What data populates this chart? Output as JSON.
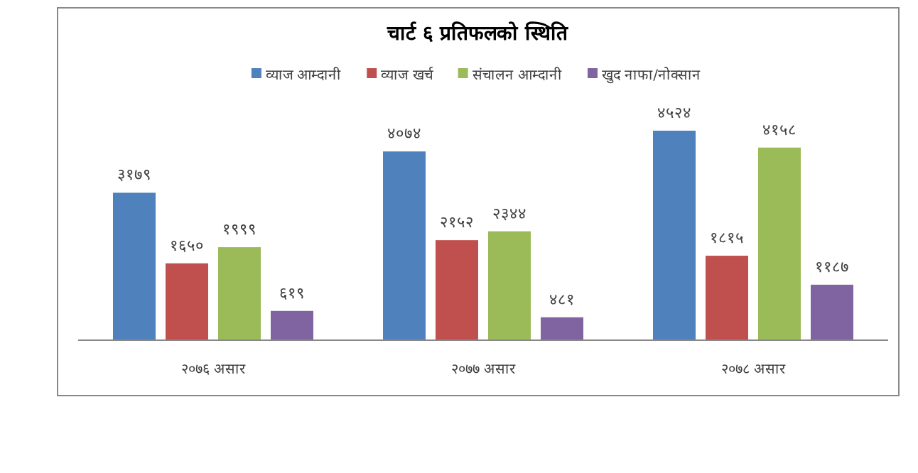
{
  "chart_data": {
    "type": "bar",
    "title": "चार्ट ६   प्रतिफलको स्थिति",
    "categories": [
      "२०७६ असार",
      "२०७७ असार",
      "२०७८ असार"
    ],
    "legend": "top",
    "series": [
      {
        "name": "व्याज आम्दानी",
        "color": "#4f81bd",
        "values": [
          3179,
          4074,
          4524
        ],
        "value_labels": [
          "३१७९",
          "४०७४",
          "४५२४"
        ]
      },
      {
        "name": "व्याज खर्च",
        "color": "#c0504d",
        "values": [
          1650,
          2152,
          1815
        ],
        "value_labels": [
          "१६५०",
          "२१५२",
          "१८१५"
        ]
      },
      {
        "name": "संचालन आम्दानी",
        "color": "#9bbb59",
        "values": [
          1999,
          2344,
          4158
        ],
        "value_labels": [
          "१९९९",
          "२३४४",
          "४१५८"
        ]
      },
      {
        "name": "खुद नाफा/नोक्सान",
        "color": "#8064a2",
        "values": [
          619,
          481,
          1187
        ],
        "value_labels": [
          "६१९",
          "४८१",
          "११८७"
        ]
      }
    ]
  }
}
